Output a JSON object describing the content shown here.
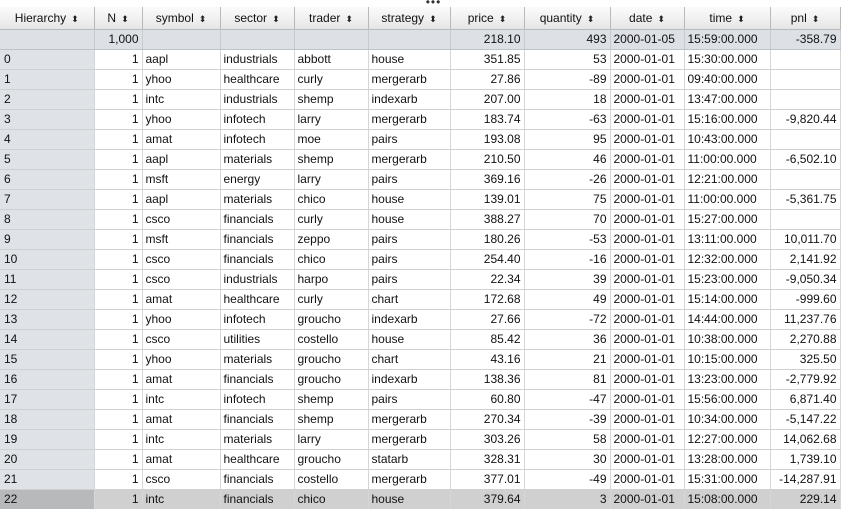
{
  "headers": [
    {
      "label": "Hierarchy",
      "key": "hier"
    },
    {
      "label": "N",
      "key": "n"
    },
    {
      "label": "symbol",
      "key": "symbol"
    },
    {
      "label": "sector",
      "key": "sector"
    },
    {
      "label": "trader",
      "key": "trader"
    },
    {
      "label": "strategy",
      "key": "strategy"
    },
    {
      "label": "price",
      "key": "price"
    },
    {
      "label": "quantity",
      "key": "quantity"
    },
    {
      "label": "date",
      "key": "date"
    },
    {
      "label": "time",
      "key": "time"
    },
    {
      "label": "pnl",
      "key": "pnl"
    }
  ],
  "sort_icon": "⬍",
  "total": {
    "hier": "",
    "n": "1,000",
    "symbol": "",
    "sector": "",
    "trader": "",
    "strategy": "",
    "price": "218.10",
    "quantity": "493",
    "date": "2000-01-05",
    "time": "15:59:00.000",
    "pnl": "-358.79"
  },
  "rows": [
    {
      "hier": "0",
      "n": "1",
      "symbol": "aapl",
      "sector": "industrials",
      "trader": "abbott",
      "strategy": "house",
      "price": "351.85",
      "quantity": "53",
      "date": "2000-01-01",
      "time": "15:30:00.000",
      "pnl": ""
    },
    {
      "hier": "1",
      "n": "1",
      "symbol": "yhoo",
      "sector": "healthcare",
      "trader": "curly",
      "strategy": "mergerarb",
      "price": "27.86",
      "quantity": "-89",
      "date": "2000-01-01",
      "time": "09:40:00.000",
      "pnl": ""
    },
    {
      "hier": "2",
      "n": "1",
      "symbol": "intc",
      "sector": "industrials",
      "trader": "shemp",
      "strategy": "indexarb",
      "price": "207.00",
      "quantity": "18",
      "date": "2000-01-01",
      "time": "13:47:00.000",
      "pnl": ""
    },
    {
      "hier": "3",
      "n": "1",
      "symbol": "yhoo",
      "sector": "infotech",
      "trader": "larry",
      "strategy": "mergerarb",
      "price": "183.74",
      "quantity": "-63",
      "date": "2000-01-01",
      "time": "15:16:00.000",
      "pnl": "-9,820.44"
    },
    {
      "hier": "4",
      "n": "1",
      "symbol": "amat",
      "sector": "infotech",
      "trader": "moe",
      "strategy": "pairs",
      "price": "193.08",
      "quantity": "95",
      "date": "2000-01-01",
      "time": "10:43:00.000",
      "pnl": ""
    },
    {
      "hier": "5",
      "n": "1",
      "symbol": "aapl",
      "sector": "materials",
      "trader": "shemp",
      "strategy": "mergerarb",
      "price": "210.50",
      "quantity": "46",
      "date": "2000-01-01",
      "time": "11:00:00.000",
      "pnl": "-6,502.10"
    },
    {
      "hier": "6",
      "n": "1",
      "symbol": "msft",
      "sector": "energy",
      "trader": "larry",
      "strategy": "pairs",
      "price": "369.16",
      "quantity": "-26",
      "date": "2000-01-01",
      "time": "12:21:00.000",
      "pnl": ""
    },
    {
      "hier": "7",
      "n": "1",
      "symbol": "aapl",
      "sector": "materials",
      "trader": "chico",
      "strategy": "house",
      "price": "139.01",
      "quantity": "75",
      "date": "2000-01-01",
      "time": "11:00:00.000",
      "pnl": "-5,361.75"
    },
    {
      "hier": "8",
      "n": "1",
      "symbol": "csco",
      "sector": "financials",
      "trader": "curly",
      "strategy": "house",
      "price": "388.27",
      "quantity": "70",
      "date": "2000-01-01",
      "time": "15:27:00.000",
      "pnl": ""
    },
    {
      "hier": "9",
      "n": "1",
      "symbol": "msft",
      "sector": "financials",
      "trader": "zeppo",
      "strategy": "pairs",
      "price": "180.26",
      "quantity": "-53",
      "date": "2000-01-01",
      "time": "13:11:00.000",
      "pnl": "10,011.70"
    },
    {
      "hier": "10",
      "n": "1",
      "symbol": "csco",
      "sector": "financials",
      "trader": "chico",
      "strategy": "pairs",
      "price": "254.40",
      "quantity": "-16",
      "date": "2000-01-01",
      "time": "12:32:00.000",
      "pnl": "2,141.92"
    },
    {
      "hier": "11",
      "n": "1",
      "symbol": "csco",
      "sector": "industrials",
      "trader": "harpo",
      "strategy": "pairs",
      "price": "22.34",
      "quantity": "39",
      "date": "2000-01-01",
      "time": "15:23:00.000",
      "pnl": "-9,050.34"
    },
    {
      "hier": "12",
      "n": "1",
      "symbol": "amat",
      "sector": "healthcare",
      "trader": "curly",
      "strategy": "chart",
      "price": "172.68",
      "quantity": "49",
      "date": "2000-01-01",
      "time": "15:14:00.000",
      "pnl": "-999.60"
    },
    {
      "hier": "13",
      "n": "1",
      "symbol": "yhoo",
      "sector": "infotech",
      "trader": "groucho",
      "strategy": "indexarb",
      "price": "27.66",
      "quantity": "-72",
      "date": "2000-01-01",
      "time": "14:44:00.000",
      "pnl": "11,237.76"
    },
    {
      "hier": "14",
      "n": "1",
      "symbol": "csco",
      "sector": "utilities",
      "trader": "costello",
      "strategy": "house",
      "price": "85.42",
      "quantity": "36",
      "date": "2000-01-01",
      "time": "10:38:00.000",
      "pnl": "2,270.88"
    },
    {
      "hier": "15",
      "n": "1",
      "symbol": "yhoo",
      "sector": "materials",
      "trader": "groucho",
      "strategy": "chart",
      "price": "43.16",
      "quantity": "21",
      "date": "2000-01-01",
      "time": "10:15:00.000",
      "pnl": "325.50"
    },
    {
      "hier": "16",
      "n": "1",
      "symbol": "amat",
      "sector": "financials",
      "trader": "groucho",
      "strategy": "indexarb",
      "price": "138.36",
      "quantity": "81",
      "date": "2000-01-01",
      "time": "13:23:00.000",
      "pnl": "-2,779.92"
    },
    {
      "hier": "17",
      "n": "1",
      "symbol": "intc",
      "sector": "infotech",
      "trader": "shemp",
      "strategy": "pairs",
      "price": "60.80",
      "quantity": "-47",
      "date": "2000-01-01",
      "time": "15:56:00.000",
      "pnl": "6,871.40"
    },
    {
      "hier": "18",
      "n": "1",
      "symbol": "amat",
      "sector": "financials",
      "trader": "shemp",
      "strategy": "mergerarb",
      "price": "270.34",
      "quantity": "-39",
      "date": "2000-01-01",
      "time": "10:34:00.000",
      "pnl": "-5,147.22"
    },
    {
      "hier": "19",
      "n": "1",
      "symbol": "intc",
      "sector": "materials",
      "trader": "larry",
      "strategy": "mergerarb",
      "price": "303.26",
      "quantity": "58",
      "date": "2000-01-01",
      "time": "12:27:00.000",
      "pnl": "14,062.68"
    },
    {
      "hier": "20",
      "n": "1",
      "symbol": "amat",
      "sector": "healthcare",
      "trader": "groucho",
      "strategy": "statarb",
      "price": "328.31",
      "quantity": "30",
      "date": "2000-01-01",
      "time": "13:28:00.000",
      "pnl": "1,739.10"
    },
    {
      "hier": "21",
      "n": "1",
      "symbol": "csco",
      "sector": "financials",
      "trader": "costello",
      "strategy": "mergerarb",
      "price": "377.01",
      "quantity": "-49",
      "date": "2000-01-01",
      "time": "15:31:00.000",
      "pnl": "-14,287.91"
    },
    {
      "hier": "22",
      "n": "1",
      "symbol": "intc",
      "sector": "financials",
      "trader": "chico",
      "strategy": "house",
      "price": "379.64",
      "quantity": "3",
      "date": "2000-01-01",
      "time": "15:08:00.000",
      "pnl": "229.14"
    }
  ],
  "selected_row": 22
}
